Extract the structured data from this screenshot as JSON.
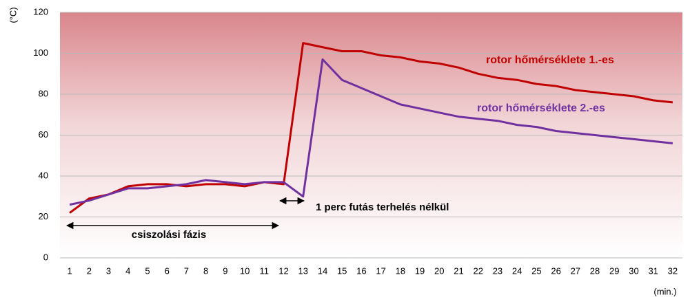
{
  "chart_data": {
    "type": "line",
    "y_label": "(°C)",
    "x_label": "(min.)",
    "categories": [
      1,
      2,
      3,
      4,
      5,
      6,
      7,
      8,
      9,
      10,
      11,
      12,
      13,
      14,
      15,
      16,
      17,
      18,
      19,
      20,
      21,
      22,
      23,
      24,
      25,
      26,
      27,
      28,
      29,
      30,
      31,
      32
    ],
    "series": [
      {
        "name": "rotor hőmérséklete 1.-es",
        "color": "#c00000",
        "values": [
          22,
          29,
          31,
          35,
          36,
          36,
          35,
          36,
          36,
          35,
          37,
          36,
          105,
          103,
          101,
          101,
          99,
          98,
          96,
          95,
          93,
          90,
          88,
          87,
          85,
          84,
          82,
          81,
          80,
          79,
          77,
          76
        ]
      },
      {
        "name": "rotor hőmérséklete 2.-es",
        "color": "#7030a0",
        "values": [
          26,
          28,
          31,
          34,
          34,
          35,
          36,
          38,
          37,
          36,
          37,
          37,
          30,
          97,
          87,
          83,
          79,
          75,
          73,
          71,
          69,
          68,
          67,
          65,
          64,
          62,
          61,
          60,
          59,
          58,
          57,
          56
        ]
      }
    ],
    "annotations": [
      "csiszolási fázis",
      "1 perc futás terhelés nélkül"
    ],
    "ylim": [
      0,
      120
    ],
    "yticks": [
      0,
      20,
      40,
      60,
      80,
      100,
      120
    ],
    "grid": true
  }
}
